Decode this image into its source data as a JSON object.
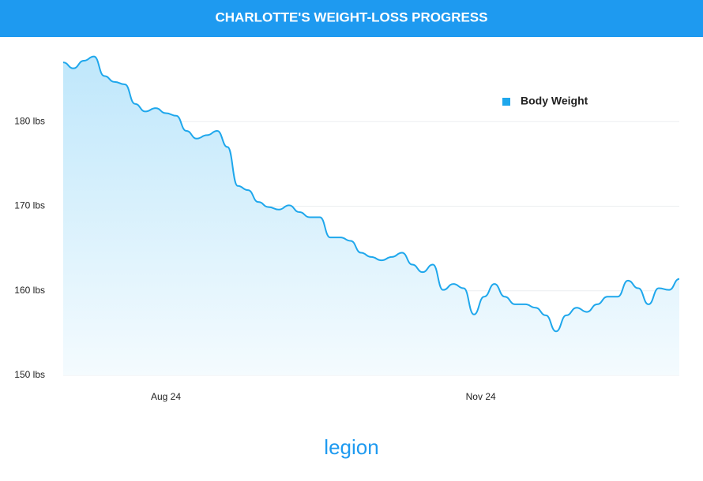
{
  "chart_data": {
    "type": "area",
    "title": "CHARLOTTE'S WEIGHT-LOSS PROGRESS",
    "x": [
      0,
      3,
      6,
      9,
      12,
      15,
      18,
      21,
      24,
      27,
      30,
      33,
      36,
      39,
      42,
      45,
      48,
      51,
      54,
      57,
      60,
      63,
      66,
      69,
      72,
      75,
      78,
      81,
      84,
      87,
      90,
      93,
      96,
      99,
      102,
      105,
      108,
      111,
      114,
      117,
      120,
      123,
      126,
      129,
      132,
      135,
      138,
      141,
      144,
      147,
      150,
      153,
      156,
      159,
      162,
      165,
      168,
      171,
      174,
      177,
      180
    ],
    "series": [
      {
        "name": "Body Weight",
        "color": "#1ea7ec",
        "values": [
          187.0,
          186.3,
          187.2,
          187.7,
          185.4,
          184.7,
          184.4,
          182.1,
          181.2,
          181.6,
          181.0,
          180.7,
          178.9,
          178.0,
          178.4,
          178.9,
          177.0,
          172.4,
          171.9,
          170.5,
          169.9,
          169.6,
          170.1,
          169.3,
          168.7,
          168.7,
          166.3,
          166.3,
          165.9,
          164.5,
          164.0,
          163.6,
          164.0,
          164.5,
          163.1,
          162.2,
          163.1,
          160.1,
          160.8,
          160.3,
          157.2,
          159.3,
          160.8,
          159.3,
          158.4,
          158.4,
          158.0,
          157.1,
          155.2,
          157.1,
          158.0,
          157.5,
          158.4,
          159.3,
          159.3,
          161.2,
          160.3,
          158.4,
          160.3,
          160.1,
          161.4
        ]
      }
    ],
    "xlim": [
      0,
      180
    ],
    "xticks": [
      {
        "value": 30,
        "label": "Aug 24"
      },
      {
        "value": 122,
        "label": "Nov 24"
      }
    ],
    "ylim": [
      150,
      190
    ],
    "yticks": [
      {
        "value": 150,
        "label": "150 lbs"
      },
      {
        "value": 160,
        "label": "160 lbs"
      },
      {
        "value": 170,
        "label": "170 lbs"
      },
      {
        "value": 180,
        "label": "180 lbs"
      }
    ],
    "grid": true,
    "legend": "upper right",
    "brand": "legion"
  }
}
